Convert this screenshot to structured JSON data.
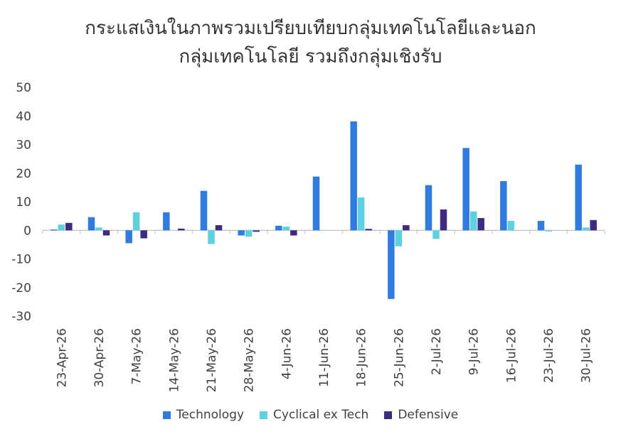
{
  "chart_data": {
    "type": "bar",
    "title": "กระแสเงินในภาพรวมเปรียบเทียบกลุ่มเทคโนโลยีและนอก",
    "subtitle": "กลุ่มเทคโนโลยี รวมถึงกลุ่มเชิงรับ",
    "categories": [
      "23-Apr-26",
      "30-Apr-26",
      "7-May-26",
      "14-May-26",
      "21-May-26",
      "28-May-26",
      "4-Jun-26",
      "11-Jun-26",
      "18-Jun-26",
      "25-Jun-26",
      "2-Jul-26",
      "9-Jul-26",
      "16-Jul-26",
      "23-Jul-26",
      "30-Jul-26"
    ],
    "series": [
      {
        "name": "Technology",
        "color": "#2F7BE0",
        "values": [
          0.3,
          4.6,
          -4.5,
          6.3,
          13.8,
          -1.8,
          1.6,
          18.8,
          38.1,
          -24.0,
          15.8,
          28.8,
          17.2,
          3.3,
          23.0
        ]
      },
      {
        "name": "Cyclical ex Tech",
        "color": "#5ED1E0",
        "values": [
          2.0,
          1.0,
          6.3,
          0.0,
          -4.8,
          -2.2,
          1.3,
          0.0,
          11.5,
          -5.6,
          -3.0,
          6.6,
          3.3,
          -0.4,
          1.0
        ]
      },
      {
        "name": "Defensive",
        "color": "#3F2A82",
        "values": [
          2.6,
          -1.8,
          -2.8,
          0.6,
          1.8,
          -0.5,
          -1.8,
          0.0,
          0.5,
          1.8,
          7.3,
          4.3,
          0.0,
          0.0,
          3.6
        ]
      }
    ],
    "ylim": [
      -30,
      50
    ],
    "yticks": [
      "50",
      "40",
      "30",
      "20",
      "10",
      "0",
      "-10",
      "-20",
      "-30"
    ],
    "xlabel": "",
    "ylabel": "",
    "grid": false,
    "legend": "bottom"
  }
}
